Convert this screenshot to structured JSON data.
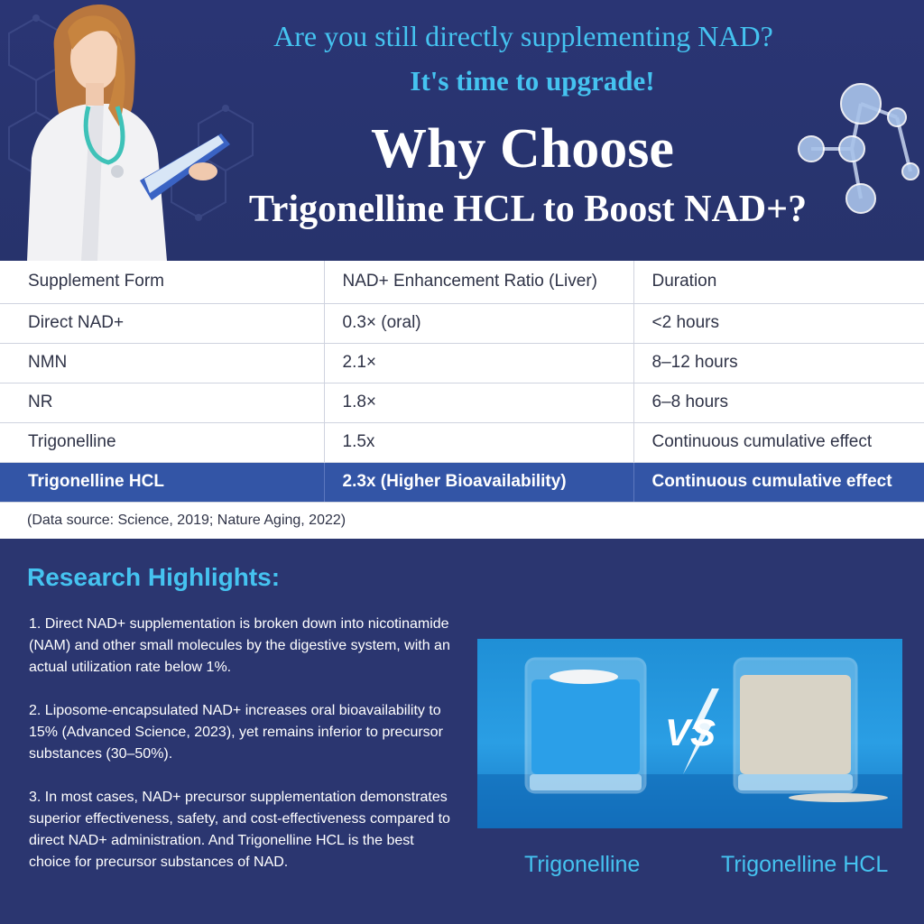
{
  "header": {
    "question": "Are you still directly supplementing NAD?",
    "upgrade": "It's time to upgrade!",
    "title_line1": "Why Choose",
    "title_line2": "Trigonelline HCL to Boost NAD+?"
  },
  "table": {
    "headers": [
      "Supplement Form",
      "NAD+ Enhancement Ratio (Liver)",
      "Duration"
    ],
    "rows": [
      [
        "Direct NAD+",
        "0.3× (oral)",
        "<2 hours"
      ],
      [
        "NMN",
        "2.1×",
        "8–12 hours"
      ],
      [
        "NR",
        "1.8×",
        "6–8 hours"
      ],
      [
        "Trigonelline",
        "1.5x",
        "Continuous cumulative effect"
      ],
      [
        "Trigonelline HCL",
        "2.3x (Higher Bioavailability)",
        "Continuous cumulative effect"
      ]
    ],
    "source": "(Data source: Science, 2019; Nature Aging, 2022)"
  },
  "research": {
    "title": "Research Highlights:",
    "points": [
      "1. Direct NAD+ supplementation is broken down into nicotinamide (NAM) and other small molecules by the digestive system, with an actual utilization rate below 1%.",
      "2. Liposome-encapsulated NAD+ increases oral bioavailability to 15% (Advanced Science, 2023), yet remains inferior to precursor substances (30–50%).",
      "3. In most cases, NAD+ precursor supplementation demonstrates superior effectiveness, safety, and cost-effectiveness compared to direct NAD+ administration. And Trigonelline HCL is the best choice for precursor substances of NAD."
    ]
  },
  "comparison": {
    "vs": "VS",
    "left_label": "Trigonelline",
    "right_label": "Trigonelline HCL"
  },
  "colors": {
    "background": "#2b3670",
    "accent": "#45c3f0",
    "highlight_row": "#3355a6"
  }
}
